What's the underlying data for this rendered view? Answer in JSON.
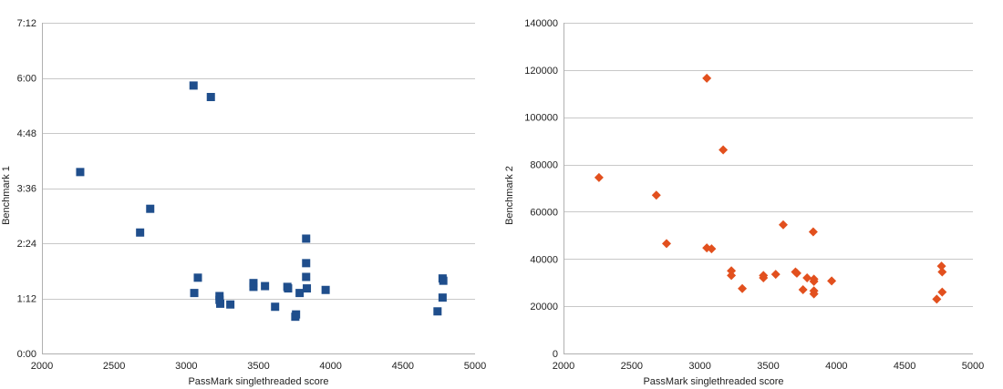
{
  "chart_data": [
    {
      "type": "scatter",
      "xlabel": "PassMark singlethreaded score",
      "ylabel": "Benchmark 1",
      "xlim": [
        2000,
        5000
      ],
      "ylim": [
        0,
        432
      ],
      "x_ticks": [
        "2000",
        "2500",
        "3000",
        "3500",
        "4000",
        "4500",
        "5000"
      ],
      "x_tick_values": [
        2000,
        2500,
        3000,
        3500,
        4000,
        4500,
        5000
      ],
      "y_ticks": [
        "0:00",
        "1:12",
        "2:24",
        "3:36",
        "4:48",
        "6:00",
        "7:12"
      ],
      "y_tick_values": [
        0,
        72,
        144,
        216,
        288,
        360,
        432
      ],
      "grid": true,
      "marker": "square",
      "color": "#1f4e8c",
      "series": [
        {
          "points": [
            [
              2265,
              237
            ],
            [
              2680,
              158
            ],
            [
              2750,
              189
            ],
            [
              3050,
              350
            ],
            [
              3170,
              335
            ],
            [
              3055,
              79
            ],
            [
              3080,
              99
            ],
            [
              3230,
              75
            ],
            [
              3230,
              70
            ],
            [
              3235,
              65
            ],
            [
              3305,
              64
            ],
            [
              3465,
              92
            ],
            [
              3465,
              87
            ],
            [
              3545,
              88
            ],
            [
              3615,
              61
            ],
            [
              3700,
              87
            ],
            [
              3705,
              85
            ],
            [
              3755,
              48
            ],
            [
              3760,
              51
            ],
            [
              3785,
              79
            ],
            [
              3830,
              150
            ],
            [
              3830,
              118
            ],
            [
              3830,
              100
            ],
            [
              3835,
              85
            ],
            [
              3965,
              83
            ],
            [
              4740,
              55
            ],
            [
              4775,
              98
            ],
            [
              4780,
              95
            ],
            [
              4775,
              73
            ]
          ]
        }
      ]
    },
    {
      "type": "scatter",
      "xlabel": "PassMark singlethreaded score",
      "ylabel": "Benchmark 2",
      "xlim": [
        2000,
        5000
      ],
      "ylim": [
        0,
        140000
      ],
      "x_ticks": [
        "2000",
        "2500",
        "3000",
        "3500",
        "4000",
        "4500",
        "5000"
      ],
      "x_tick_values": [
        2000,
        2500,
        3000,
        3500,
        4000,
        4500,
        5000
      ],
      "y_ticks": [
        "0",
        "20000",
        "40000",
        "60000",
        "80000",
        "100000",
        "120000",
        "140000"
      ],
      "y_tick_values": [
        0,
        20000,
        40000,
        60000,
        80000,
        100000,
        120000,
        140000
      ],
      "grid": true,
      "marker": "diamond",
      "color": "#e2501e",
      "series": [
        {
          "points": [
            [
              2260,
              74500
            ],
            [
              2680,
              67000
            ],
            [
              2755,
              46500
            ],
            [
              3050,
              116500
            ],
            [
              3050,
              44700
            ],
            [
              3085,
              44300
            ],
            [
              3170,
              86200
            ],
            [
              3230,
              35000
            ],
            [
              3230,
              33000
            ],
            [
              3310,
              27500
            ],
            [
              3465,
              33000
            ],
            [
              3465,
              32000
            ],
            [
              3555,
              33500
            ],
            [
              3610,
              54500
            ],
            [
              3700,
              34500
            ],
            [
              3710,
              34000
            ],
            [
              3755,
              27000
            ],
            [
              3785,
              32000
            ],
            [
              3830,
              51500
            ],
            [
              3835,
              31500
            ],
            [
              3835,
              30500
            ],
            [
              3835,
              26500
            ],
            [
              3835,
              25200
            ],
            [
              3965,
              30700
            ],
            [
              4735,
              23000
            ],
            [
              4770,
              37000
            ],
            [
              4775,
              34500
            ],
            [
              4775,
              26000
            ]
          ]
        }
      ]
    }
  ]
}
